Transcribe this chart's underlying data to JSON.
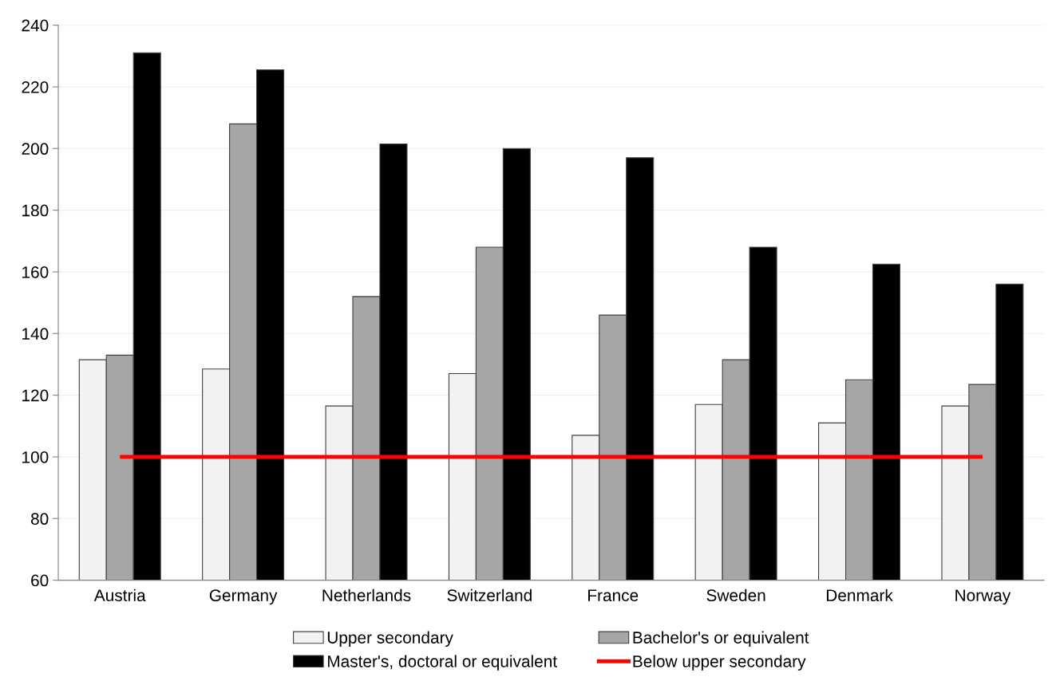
{
  "chart_data": {
    "type": "bar",
    "categories": [
      "Austria",
      "Germany",
      "Netherlands",
      "Switzerland",
      "France",
      "Sweden",
      "Denmark",
      "Norway"
    ],
    "series": [
      {
        "name": "Upper secondary",
        "color": "#f2f2f2",
        "values": [
          131.5,
          128.5,
          116.5,
          127,
          107,
          117,
          111,
          116.5
        ]
      },
      {
        "name": "Bachelor's or equivalent",
        "color": "#a6a6a6",
        "values": [
          133,
          208,
          152,
          168,
          146,
          131.5,
          125,
          123.5
        ]
      },
      {
        "name": "Master's, doctoral or equivalent",
        "color": "#000000",
        "values": [
          231,
          225.5,
          201.5,
          200,
          197,
          168,
          162.5,
          156
        ]
      },
      {
        "name": "Below upper secondary",
        "color": "#ff0000",
        "type": "line",
        "values": [
          100,
          100,
          100,
          100,
          100,
          100,
          100,
          100
        ]
      }
    ],
    "ylim": [
      60,
      240
    ],
    "yticks": [
      60,
      80,
      100,
      120,
      140,
      160,
      180,
      200,
      220,
      240
    ],
    "grid": "y",
    "legend": "bottom"
  }
}
